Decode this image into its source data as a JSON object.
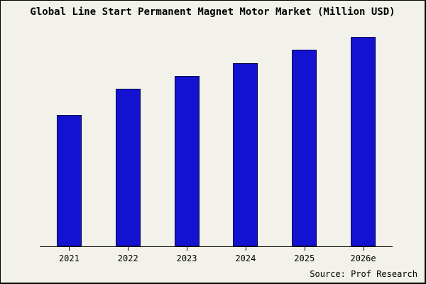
{
  "title": "Global Line Start Permanent Magnet Motor Market (Million USD)",
  "source": "Source: Prof Research",
  "colors": {
    "background": "#f2f1ea",
    "bar_fill": "#1212d0",
    "bar_border": "#00004d",
    "axis": "#000000"
  },
  "chart_data": {
    "type": "bar",
    "title": "Global Line Start Permanent Magnet Motor Market (Million USD)",
    "categories": [
      "2021",
      "2022",
      "2023",
      "2024",
      "2025",
      "2026e"
    ],
    "values": [
      61,
      73,
      79,
      85,
      91,
      97
    ],
    "xlabel": "",
    "ylabel": "",
    "ylim": [
      0,
      100
    ],
    "grid": false,
    "legend": false
  }
}
